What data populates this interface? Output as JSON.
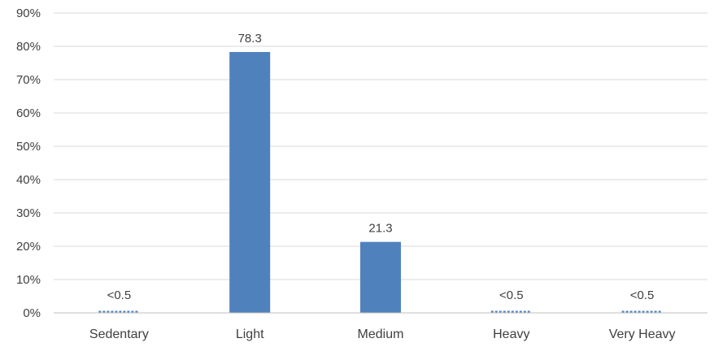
{
  "chart_data": {
    "type": "bar",
    "title": "",
    "xlabel": "",
    "ylabel": "",
    "categories": [
      "Sedentary",
      "Light",
      "Medium",
      "Heavy",
      "Very Heavy"
    ],
    "values": [
      0.5,
      78.3,
      21.3,
      0.5,
      0.5
    ],
    "value_labels": [
      "<0.5",
      "78.3",
      "21.3",
      "<0.5",
      "<0.5"
    ],
    "approximate": [
      true,
      false,
      false,
      true,
      true
    ],
    "ylim": [
      0,
      90
    ],
    "yticks": [
      0,
      10,
      20,
      30,
      40,
      50,
      60,
      70,
      80,
      90
    ],
    "ytick_labels": [
      "0%",
      "10%",
      "20%",
      "30%",
      "40%",
      "50%",
      "60%",
      "70%",
      "80%",
      "90%"
    ],
    "grid": true,
    "legend": "none",
    "colors": {
      "bar": "#4F81BD",
      "grid": "#D9D9D9",
      "axis": "#BFBFBF",
      "text": "#404040"
    }
  }
}
